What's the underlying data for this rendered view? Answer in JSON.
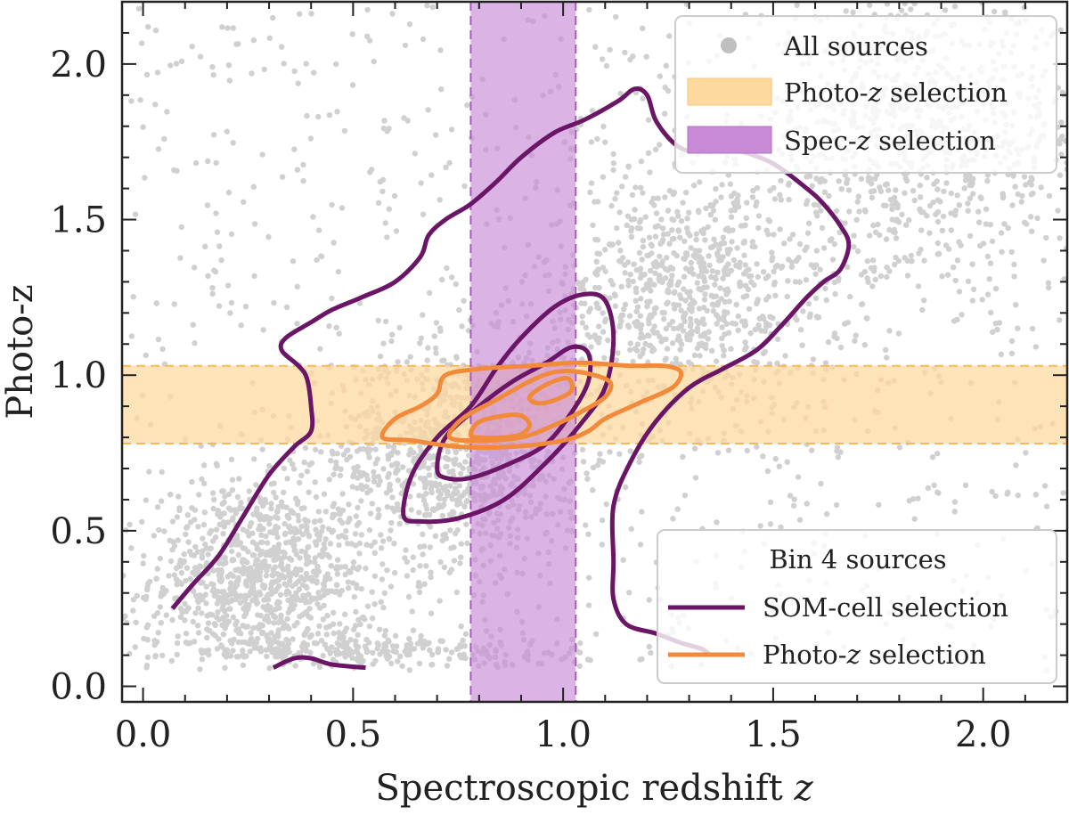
{
  "chart_data": {
    "type": "scatter",
    "title": "",
    "xlabel_prefix": "Spectroscopic redshift ",
    "xlabel_var": "z",
    "ylabel": "Photo-z",
    "xlim": [
      -0.05,
      2.2
    ],
    "ylim": [
      -0.05,
      2.2
    ],
    "x_ticks": [
      0.0,
      0.5,
      1.0,
      1.5,
      2.0
    ],
    "x_tick_labels": [
      "0.0",
      "0.5",
      "1.0",
      "1.5",
      "2.0"
    ],
    "y_ticks": [
      0.0,
      0.5,
      1.0,
      1.5,
      2.0
    ],
    "y_tick_labels": [
      "0.0",
      "0.5",
      "1.0",
      "1.5",
      "2.0"
    ],
    "minor_tick_step": 0.1,
    "grid": false,
    "colors": {
      "all_sources": "#d0d0d0",
      "photoz_band": "#fdd9a0",
      "specz_band": "#c88ad6",
      "som_contour": "#6a1566",
      "photoz_contour": "#f18a3b"
    },
    "series": [
      {
        "name": "All sources",
        "kind": "scatter",
        "description_clusters": [
          {
            "x_range": [
              0.05,
              0.55
            ],
            "y_range": [
              0.1,
              0.6
            ]
          },
          {
            "x_range": [
              0.5,
              1.1
            ],
            "y_range": [
              0.4,
              1.1
            ]
          },
          {
            "x_range": [
              0.9,
              1.7
            ],
            "y_range": [
              0.9,
              1.6
            ]
          },
          {
            "x_range": [
              1.4,
              2.2
            ],
            "y_range": [
              1.3,
              2.1
            ]
          }
        ]
      }
    ],
    "bands": [
      {
        "name": "Photo-z selection",
        "axis": "y",
        "range": [
          0.78,
          1.03
        ]
      },
      {
        "name": "Spec-z selection",
        "axis": "x",
        "range": [
          0.78,
          1.03
        ]
      }
    ],
    "contours": {
      "som_cell": [
        [
          [
            0.07,
            0.25
          ],
          [
            0.12,
            0.33
          ],
          [
            0.18,
            0.42
          ],
          [
            0.24,
            0.55
          ],
          [
            0.3,
            0.68
          ],
          [
            0.36,
            0.77
          ],
          [
            0.4,
            0.82
          ],
          [
            0.4,
            0.9
          ],
          [
            0.39,
            0.99
          ],
          [
            0.37,
            1.03
          ],
          [
            0.33,
            1.08
          ],
          [
            0.34,
            1.12
          ],
          [
            0.4,
            1.17
          ],
          [
            0.45,
            1.21
          ],
          [
            0.52,
            1.25
          ],
          [
            0.6,
            1.3
          ],
          [
            0.66,
            1.38
          ],
          [
            0.68,
            1.45
          ],
          [
            0.72,
            1.5
          ],
          [
            0.78,
            1.55
          ],
          [
            0.84,
            1.62
          ],
          [
            0.9,
            1.7
          ],
          [
            0.98,
            1.78
          ],
          [
            1.05,
            1.82
          ],
          [
            1.13,
            1.88
          ],
          [
            1.17,
            1.92
          ],
          [
            1.2,
            1.9
          ],
          [
            1.22,
            1.82
          ],
          [
            1.26,
            1.75
          ],
          [
            1.3,
            1.72
          ],
          [
            1.35,
            1.73
          ],
          [
            1.42,
            1.72
          ],
          [
            1.5,
            1.68
          ],
          [
            1.58,
            1.6
          ],
          [
            1.62,
            1.55
          ],
          [
            1.66,
            1.48
          ],
          [
            1.68,
            1.42
          ],
          [
            1.66,
            1.34
          ],
          [
            1.62,
            1.3
          ],
          [
            1.58,
            1.25
          ],
          [
            1.52,
            1.16
          ],
          [
            1.46,
            1.08
          ],
          [
            1.38,
            1.02
          ],
          [
            1.3,
            0.96
          ],
          [
            1.22,
            0.85
          ],
          [
            1.16,
            0.72
          ],
          [
            1.12,
            0.58
          ],
          [
            1.12,
            0.4
          ],
          [
            1.12,
            0.28
          ],
          [
            1.15,
            0.2
          ],
          [
            1.22,
            0.17
          ],
          [
            1.28,
            0.14
          ],
          [
            1.33,
            0.12
          ],
          [
            1.35,
            0.1
          ]
        ],
        [
          [
            0.31,
            0.06
          ],
          [
            0.36,
            0.09
          ],
          [
            0.4,
            0.09
          ],
          [
            0.45,
            0.07
          ],
          [
            0.53,
            0.06
          ]
        ],
        [
          [
            0.62,
            0.55
          ],
          [
            0.64,
            0.68
          ],
          [
            0.7,
            0.8
          ],
          [
            0.78,
            0.9
          ],
          [
            0.84,
            1.02
          ],
          [
            0.9,
            1.12
          ],
          [
            0.98,
            1.22
          ],
          [
            1.05,
            1.26
          ],
          [
            1.1,
            1.24
          ],
          [
            1.12,
            1.12
          ],
          [
            1.1,
            0.96
          ],
          [
            1.04,
            0.84
          ],
          [
            0.96,
            0.72
          ],
          [
            0.86,
            0.6
          ],
          [
            0.75,
            0.54
          ],
          [
            0.66,
            0.53
          ],
          [
            0.62,
            0.55
          ]
        ],
        [
          [
            0.7,
            0.7
          ],
          [
            0.72,
            0.8
          ],
          [
            0.8,
            0.9
          ],
          [
            0.88,
            0.98
          ],
          [
            0.96,
            1.04
          ],
          [
            1.02,
            1.09
          ],
          [
            1.06,
            1.07
          ],
          [
            1.06,
            0.98
          ],
          [
            1.02,
            0.88
          ],
          [
            0.96,
            0.78
          ],
          [
            0.88,
            0.72
          ],
          [
            0.78,
            0.67
          ],
          [
            0.72,
            0.67
          ],
          [
            0.7,
            0.7
          ]
        ]
      ],
      "photoz": [
        [
          [
            0.57,
            0.8
          ],
          [
            0.6,
            0.86
          ],
          [
            0.66,
            0.9
          ],
          [
            0.7,
            0.94
          ],
          [
            0.72,
            1.0
          ],
          [
            0.8,
            1.02
          ],
          [
            0.92,
            1.03
          ],
          [
            1.04,
            1.04
          ],
          [
            1.16,
            1.03
          ],
          [
            1.24,
            1.03
          ],
          [
            1.28,
            1.01
          ],
          [
            1.26,
            0.96
          ],
          [
            1.18,
            0.91
          ],
          [
            1.1,
            0.86
          ],
          [
            1.06,
            0.82
          ],
          [
            1.0,
            0.79
          ],
          [
            0.88,
            0.77
          ],
          [
            0.75,
            0.77
          ],
          [
            0.64,
            0.79
          ],
          [
            0.57,
            0.8
          ]
        ],
        [
          [
            0.73,
            0.8
          ],
          [
            0.76,
            0.86
          ],
          [
            0.84,
            0.92
          ],
          [
            0.92,
            0.98
          ],
          [
            0.98,
            1.01
          ],
          [
            1.04,
            1.01
          ],
          [
            1.11,
            0.98
          ],
          [
            1.1,
            0.93
          ],
          [
            1.04,
            0.88
          ],
          [
            0.98,
            0.84
          ],
          [
            0.9,
            0.8
          ],
          [
            0.8,
            0.79
          ],
          [
            0.73,
            0.8
          ]
        ],
        [
          [
            0.78,
            0.81
          ],
          [
            0.8,
            0.85
          ],
          [
            0.86,
            0.87
          ],
          [
            0.9,
            0.87
          ],
          [
            0.92,
            0.84
          ],
          [
            0.9,
            0.81
          ],
          [
            0.86,
            0.8
          ],
          [
            0.8,
            0.8
          ],
          [
            0.78,
            0.81
          ]
        ],
        [
          [
            0.92,
            0.93
          ],
          [
            0.96,
            0.97
          ],
          [
            1.01,
            0.99
          ],
          [
            1.02,
            0.95
          ],
          [
            0.98,
            0.92
          ],
          [
            0.94,
            0.91
          ],
          [
            0.92,
            0.93
          ]
        ]
      ]
    },
    "legends": [
      {
        "placement": "top-right",
        "title": "",
        "entries": [
          {
            "label_prefix": "All sources",
            "label_var": "",
            "label_suffix": ""
          },
          {
            "label_prefix": "Photo-",
            "label_var": "z",
            "label_suffix": " selection"
          },
          {
            "label_prefix": "Spec-",
            "label_var": "z",
            "label_suffix": " selection"
          }
        ]
      },
      {
        "placement": "bottom-right",
        "title": "Bin 4 sources",
        "entries": [
          {
            "label_prefix": "SOM-cell selection",
            "label_var": "",
            "label_suffix": ""
          },
          {
            "label_prefix": "Photo-",
            "label_var": "z",
            "label_suffix": " selection"
          }
        ]
      }
    ]
  }
}
